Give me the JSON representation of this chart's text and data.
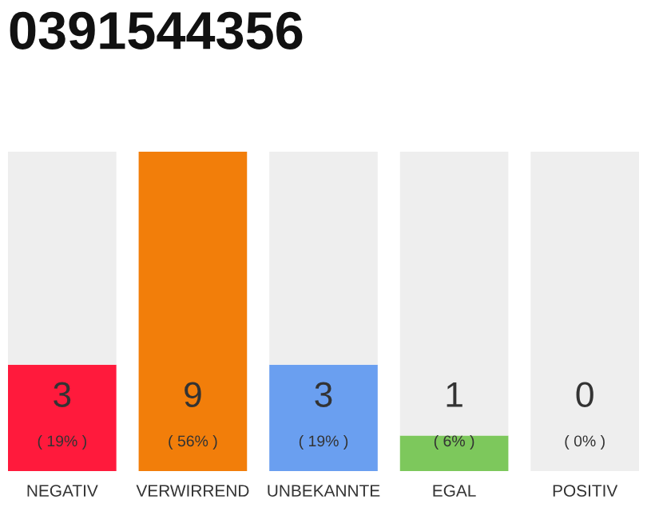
{
  "chart_data": {
    "type": "bar",
    "title": "0391544356",
    "stacked": true,
    "tick_labels": "x",
    "grid": false,
    "legend": false,
    "annotations": [
      {
        "text": "0\n( 0% )",
        "x": "POSITIV",
        "y": 0
      }
    ],
    "categories": [
      "NEGATIV",
      "VERWIRREND",
      "UNBEKANNTE",
      "EGAL",
      "POSITIV"
    ],
    "series": [
      {
        "colors": [
          "#ff1a3c",
          "#f27e0a",
          "#6a9ff0",
          "#7dc85c",
          "#eeeeee"
        ],
        "values": [
          3,
          9,
          3,
          1,
          0
        ],
        "value_labels": [
          "3\n( 19% )",
          "9\n( 56% )",
          "3\n( 19% )",
          "1\n( 6% )",
          null
        ]
      },
      {
        "color": "#eeeeee",
        "values": [
          6,
          0,
          6,
          8,
          9
        ]
      }
    ]
  }
}
